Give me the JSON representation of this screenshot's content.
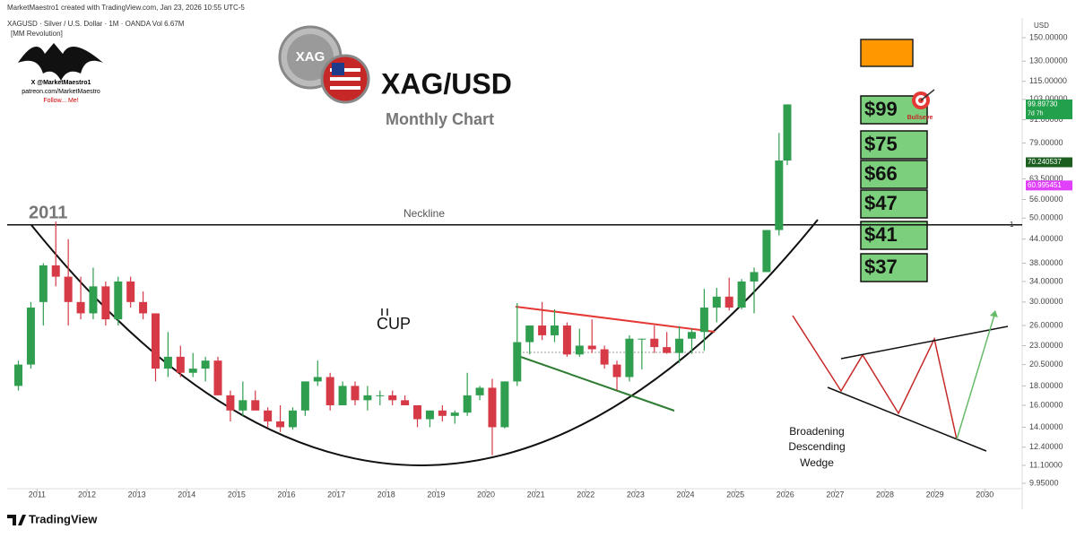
{
  "chart_data": {
    "type": "candlestick",
    "title": "XAG/USD",
    "subtitle": "Monthly Chart",
    "header": "MarketMaestro1 created with TradingView.com, Jan 23, 2026 10:55 UTC-5",
    "symbol_line": "XAGUSD · Silver / U.S. Dollar · 1M · OANDA  Vol 6.67M",
    "indicator_line": "[MM Revolution]",
    "logo_lines": [
      "X @MarketMaestro1",
      "patreon.com/MarketMaestro",
      "Follow... Me!"
    ],
    "coin_label": "XAG",
    "currency": "USD",
    "footer": "TradingView",
    "log_scale": true,
    "up_color": "#2f9e4f",
    "down_color": "#d63a47",
    "x": [
      2010.625,
      2010.875,
      2011.125,
      2011.375,
      2011.625,
      2011.875,
      2012.125,
      2012.375,
      2012.625,
      2012.875,
      2013.125,
      2013.375,
      2013.625,
      2013.875,
      2014.125,
      2014.375,
      2014.625,
      2014.875,
      2015.125,
      2015.375,
      2015.625,
      2015.875,
      2016.125,
      2016.375,
      2016.625,
      2016.875,
      2017.125,
      2017.375,
      2017.625,
      2017.875,
      2018.125,
      2018.375,
      2018.625,
      2018.875,
      2019.125,
      2019.375,
      2019.625,
      2019.875,
      2020.125,
      2020.375,
      2020.625,
      2020.875,
      2021.125,
      2021.375,
      2021.625,
      2021.875,
      2022.125,
      2022.375,
      2022.625,
      2022.875,
      2023.125,
      2023.375,
      2023.625,
      2023.875,
      2024.125,
      2024.375,
      2024.625,
      2024.875,
      2025.125,
      2025.375,
      2025.625,
      2025.875,
      2026.04
    ],
    "open": [
      18,
      20.5,
      30,
      37.5,
      35,
      30,
      28,
      33,
      27,
      34,
      30,
      28,
      20,
      21.5,
      19.5,
      20,
      21,
      17,
      15.5,
      16.5,
      15.5,
      14.5,
      14,
      15.5,
      18.5,
      19,
      16,
      18,
      16.5,
      17,
      17,
      16.5,
      16,
      14.7,
      15.5,
      15,
      15.3,
      17,
      17.8,
      14,
      18.5,
      23.5,
      26,
      24.5,
      26,
      21.8,
      23,
      22.5,
      20.5,
      19,
      24,
      24,
      22.8,
      22,
      24,
      25,
      29,
      31,
      29,
      34,
      36,
      46.5,
      71
    ],
    "high": [
      21,
      30,
      38,
      49,
      44,
      35,
      37,
      34,
      35,
      35,
      32,
      28,
      25,
      23,
      22,
      21.5,
      21.5,
      17.5,
      18.5,
      17.5,
      15.8,
      16,
      15.8,
      18.5,
      21,
      19.5,
      18.5,
      18.5,
      18,
      17.5,
      17.5,
      17,
      16,
      15.5,
      16,
      15.5,
      19.5,
      18,
      18.8,
      18.5,
      29.8,
      26,
      30,
      28.7,
      26.5,
      25.5,
      27,
      23,
      21,
      24.5,
      24,
      26,
      25,
      25.9,
      25.5,
      32.5,
      32.7,
      34.8,
      34.5,
      37,
      46.5,
      84,
      100
    ],
    "low": [
      17.5,
      20,
      26,
      33,
      26,
      27,
      27,
      26,
      26,
      29,
      27,
      18.5,
      19,
      19,
      19,
      18.5,
      17,
      14.5,
      15,
      15.5,
      14,
      13.6,
      13.8,
      15,
      18,
      15.5,
      16,
      16,
      15.5,
      16,
      16,
      16,
      14,
      14,
      14.5,
      14.3,
      15,
      16.5,
      11.8,
      13.9,
      18,
      21.8,
      23.8,
      23.5,
      21.5,
      21.5,
      22,
      20,
      17.5,
      18.5,
      19.9,
      22,
      21.9,
      20.7,
      21.9,
      22.3,
      26.5,
      28.5,
      28.7,
      28,
      36,
      45,
      69
    ],
    "close": [
      20.5,
      29,
      37.5,
      35,
      30,
      28,
      33,
      27,
      34,
      30,
      28,
      20,
      21.5,
      19.5,
      20,
      21,
      17,
      15.5,
      16.5,
      15.5,
      14.5,
      14,
      15.5,
      18.5,
      19,
      16,
      18,
      16.5,
      17,
      17,
      16.5,
      16,
      14.7,
      15.5,
      15,
      15.3,
      17,
      17.8,
      14,
      18.5,
      23.5,
      26,
      24.5,
      26,
      21.8,
      23,
      22.5,
      20.5,
      19,
      24,
      24,
      22.8,
      22,
      24,
      25,
      29,
      31,
      29,
      34,
      36,
      46.5,
      71,
      99.8973
    ],
    "xlim": [
      2010.4,
      2030.75
    ],
    "xticks": [
      2011,
      2012,
      2013,
      2014,
      2015,
      2016,
      2017,
      2018,
      2019,
      2020,
      2021,
      2022,
      2023,
      2024,
      2025,
      2026,
      2027,
      2028,
      2029,
      2030
    ],
    "ylim": [
      9.95,
      150
    ],
    "yticks": [
      {
        "value": 150,
        "label": "150.00000"
      },
      {
        "value": 130,
        "label": "130.00000"
      },
      {
        "value": 115,
        "label": "115.00000"
      },
      {
        "value": 103,
        "label": "103.00000"
      },
      {
        "value": 91,
        "label": "91.00000"
      },
      {
        "value": 79,
        "label": "79.00000"
      },
      {
        "value": 63.5,
        "label": "63.50000"
      },
      {
        "value": 56,
        "label": "56.00000"
      },
      {
        "value": 50,
        "label": "50.00000"
      },
      {
        "value": 44,
        "label": "44.00000"
      },
      {
        "value": 38,
        "label": "38.00000"
      },
      {
        "value": 34,
        "label": "34.00000"
      },
      {
        "value": 30,
        "label": "30.00000"
      },
      {
        "value": 26,
        "label": "26.00000"
      },
      {
        "value": 23,
        "label": "23.00000"
      },
      {
        "value": 20.5,
        "label": "20.50000"
      },
      {
        "value": 18,
        "label": "18.00000"
      },
      {
        "value": 16,
        "label": "16.00000"
      },
      {
        "value": 14,
        "label": "14.00000"
      },
      {
        "value": 12.4,
        "label": "12.40000"
      },
      {
        "value": 11.1,
        "label": "11.10000"
      },
      {
        "value": 9.95,
        "label": "9.95000"
      }
    ],
    "price_labels": [
      {
        "value": 99.8973,
        "label": "99.89730",
        "color": "#22a04b",
        "note": "7d 7h"
      },
      {
        "value": 70.240537,
        "label": "70.240537",
        "color": "#1b5e20"
      },
      {
        "value": 60.995451,
        "label": "60.995451",
        "color": "#e040fb"
      }
    ],
    "neckline": {
      "label": "Neckline",
      "value": 48,
      "marker": "1"
    },
    "year_label": "2011",
    "cup_label": "CUP",
    "targets": [
      "$99",
      "$75",
      "$66",
      "$47",
      "$41",
      "$37"
    ],
    "bullseye_label": "Bullseye",
    "pattern_label": [
      "Broadening",
      "Descending",
      "Wedge"
    ]
  }
}
